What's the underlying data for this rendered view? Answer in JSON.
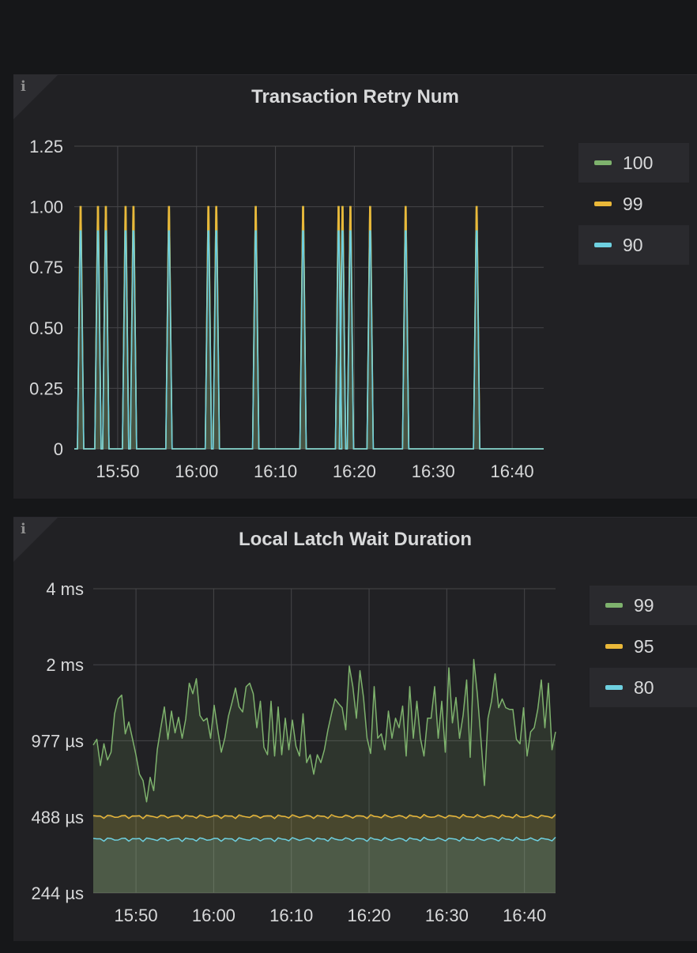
{
  "panels": [
    {
      "id": "p1",
      "title": "Transaction Retry Num",
      "legend": [
        {
          "label": "100",
          "color": "#7eb26d"
        },
        {
          "label": "99",
          "color": "#eab839"
        },
        {
          "label": "90",
          "color": "#6ed0e0"
        }
      ]
    },
    {
      "id": "p2",
      "title": "Local Latch Wait Duration",
      "legend": [
        {
          "label": "99",
          "color": "#7eb26d"
        },
        {
          "label": "95",
          "color": "#eab839"
        },
        {
          "label": "80",
          "color": "#6ed0e0"
        }
      ]
    }
  ],
  "chart_data": [
    {
      "type": "line",
      "title": "Transaction Retry Num",
      "x_ticks": [
        "15:50",
        "16:00",
        "16:10",
        "16:20",
        "16:30",
        "16:40"
      ],
      "x_range_minutes": [
        "15:44:30",
        "16:44:00"
      ],
      "x_tick_minutes": [
        5.5,
        15.5,
        25.5,
        35.5,
        45.5,
        55.5
      ],
      "y_ticks": [
        "0",
        "0.25",
        "0.50",
        "0.75",
        "1.00",
        "1.25"
      ],
      "ylim": [
        0,
        1.25
      ],
      "spikes_minutes": [
        0.8,
        3,
        4,
        6.5,
        7.5,
        12,
        17,
        18,
        23,
        29,
        33.5,
        34,
        35,
        37.5,
        42,
        51
      ],
      "series": [
        {
          "name": "100",
          "color": "#7eb26d",
          "spike_value": 1.0
        },
        {
          "name": "99",
          "color": "#eab839",
          "spike_value": 1.0
        },
        {
          "name": "90",
          "color": "#6ed0e0",
          "spike_value": 0.9
        }
      ],
      "legend_position": "right",
      "grid": true
    },
    {
      "type": "line",
      "title": "Local Latch Wait Duration",
      "scale": "log2",
      "x_ticks": [
        "15:50",
        "16:00",
        "16:10",
        "16:20",
        "16:30",
        "16:40"
      ],
      "x_tick_minutes": [
        5.5,
        15.5,
        25.5,
        35.5,
        45.5,
        55.5
      ],
      "y_ticks": [
        "244 µs",
        "488 µs",
        "977 µs",
        "2 ms",
        "4 ms"
      ],
      "y_tick_values_us": [
        244,
        488,
        977,
        1953,
        3906
      ],
      "series": [
        {
          "name": "99",
          "color": "#7eb26d",
          "values_us": [
            940,
            990,
            780,
            950,
            820,
            880,
            1250,
            1430,
            1480,
            1040,
            1160,
            1000,
            860,
            720,
            680,
            560,
            700,
            620,
            900,
            1100,
            1330,
            990,
            1280,
            1050,
            1210,
            1000,
            1190,
            1650,
            1500,
            1720,
            1230,
            1170,
            1200,
            1000,
            1350,
            1080,
            880,
            1000,
            1220,
            1380,
            1580,
            1330,
            1270,
            1600,
            1650,
            1500,
            1100,
            1400,
            920,
            860,
            1400,
            850,
            1330,
            860,
            1200,
            900,
            1180,
            930,
            850,
            1250,
            800,
            860,
            720,
            860,
            800,
            900,
            1080,
            1250,
            1430,
            1370,
            1320,
            1080,
            1930,
            1600,
            1200,
            1850,
            1450,
            1000,
            870,
            1600,
            1000,
            1040,
            900,
            1280,
            1000,
            1200,
            1100,
            1340,
            850,
            1600,
            1000,
            1400,
            1000,
            850,
            1200,
            1200,
            1600,
            1000,
            1400,
            880,
            1900,
            1150,
            1450,
            1000,
            1230,
            1700,
            840,
            2050,
            1500,
            1000,
            650,
            1200,
            1400,
            1800,
            1320,
            1430,
            1320,
            1300,
            1300,
            990,
            950,
            1320,
            850,
            1060,
            1100,
            1300,
            1700,
            1100,
            1650,
            900,
            1060
          ]
        },
        {
          "name": "95",
          "color": "#eab839",
          "base_value_us": 490
        },
        {
          "name": "80",
          "color": "#6ed0e0",
          "base_value_us": 398
        }
      ],
      "legend_position": "right",
      "grid": true
    }
  ]
}
